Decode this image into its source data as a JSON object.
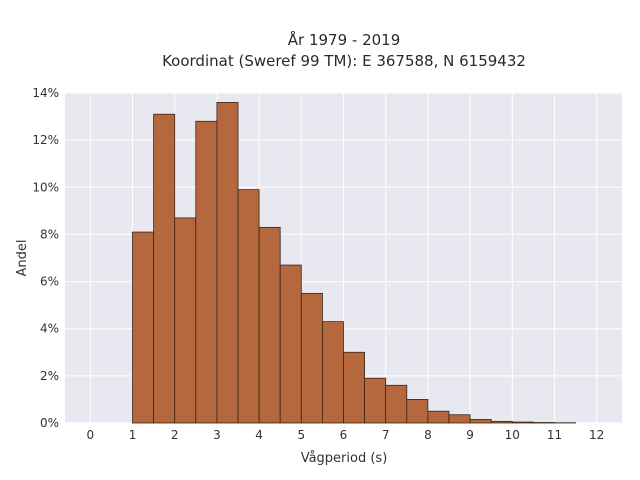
{
  "chart_data": {
    "type": "bar",
    "title_lines": [
      "År 1979 - 2019",
      "Koordinat (Sweref 99 TM): E 367588, N 6159432"
    ],
    "xlabel": "Vågperiod (s)",
    "ylabel": "Andel",
    "xlim": [
      -0.6,
      12.6
    ],
    "ylim": [
      0,
      14
    ],
    "x_ticks": [
      0,
      1,
      2,
      3,
      4,
      5,
      6,
      7,
      8,
      9,
      10,
      11,
      12
    ],
    "y_ticks": [
      0,
      2,
      4,
      6,
      8,
      10,
      12,
      14
    ],
    "y_tick_labels": [
      "0%",
      "2%",
      "4%",
      "6%",
      "8%",
      "10%",
      "12%",
      "14%"
    ],
    "grid": true,
    "bin_width": 0.5,
    "bin_starts": [
      1.0,
      1.5,
      2.0,
      2.5,
      3.0,
      3.5,
      4.0,
      4.5,
      5.0,
      5.5,
      6.0,
      6.5,
      7.0,
      7.5,
      8.0,
      8.5,
      9.0,
      9.5,
      10.0,
      10.5,
      11.0
    ],
    "values": [
      8.1,
      13.1,
      8.7,
      12.8,
      13.6,
      9.9,
      8.3,
      6.7,
      5.5,
      4.3,
      3.0,
      1.9,
      1.6,
      1.0,
      0.5,
      0.35,
      0.15,
      0.07,
      0.04,
      0.02,
      0.01
    ],
    "bar_color": "#b5683d",
    "bar_edge_color": "#3a2418",
    "plot_bg": "#e8e8f0",
    "grid_color": "#ffffff"
  }
}
